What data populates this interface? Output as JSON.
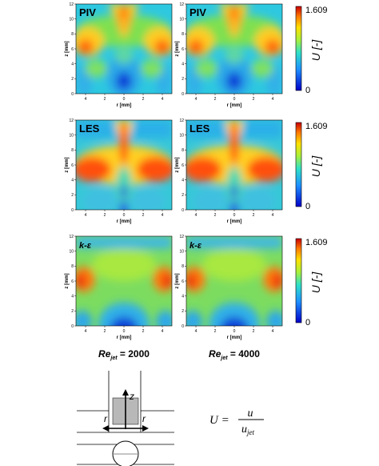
{
  "figure": {
    "x_axis_label": "r [mm]",
    "y_axis_label": "z [mm]",
    "x_ticks": [
      "4",
      "2",
      "0",
      "2",
      "4"
    ],
    "y_ticks": [
      "0",
      "2",
      "4",
      "6",
      "8",
      "10",
      "12"
    ],
    "colorbar": {
      "max_label": "1.609",
      "min_label": "0",
      "label": "U [-]"
    },
    "columns": [
      {
        "re_symbol": "Re",
        "re_sub": "jet",
        "re_value": "= 2000"
      },
      {
        "re_symbol": "Re",
        "re_sub": "jet",
        "re_value": "= 4000"
      }
    ],
    "rows": [
      {
        "label": "PIV",
        "variant": "piv"
      },
      {
        "label": "LES",
        "variant": "les"
      },
      {
        "label": "k-ε",
        "variant": "ke"
      }
    ],
    "schematic": {
      "z_label": "z",
      "r_left": "r",
      "r_right": "r"
    },
    "equation": {
      "lhs": "U =",
      "numerator": "u",
      "denominator_main": "u",
      "denominator_sub": "jet"
    },
    "colors": {
      "blue": "#0b2dc8",
      "cyan": "#19c6e6",
      "green": "#8fe03a",
      "yellow": "#ffe21a",
      "red": "#e8280e"
    }
  }
}
